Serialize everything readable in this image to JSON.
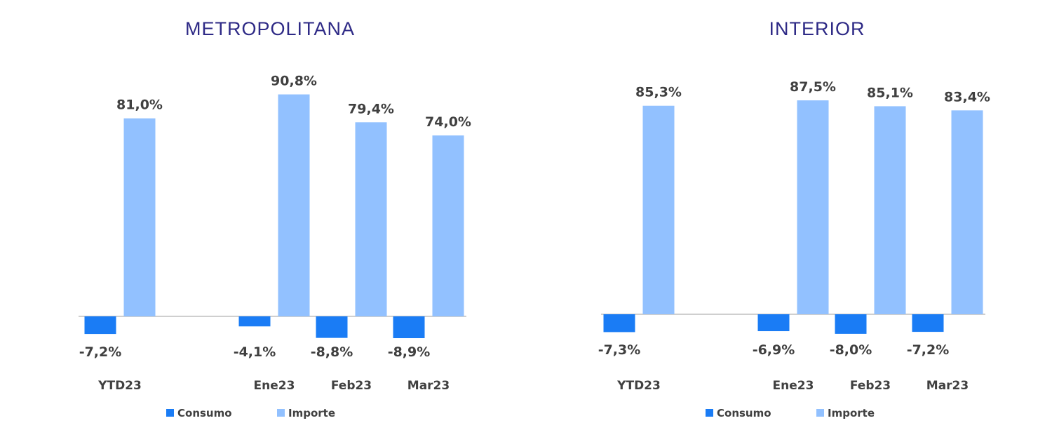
{
  "colors": {
    "title": "#2e2a86",
    "consumo": "#1a7cf5",
    "importe": "#92c1ff",
    "axis": "#bfbfbf",
    "text": "#404040"
  },
  "chart_data": [
    {
      "type": "bar",
      "title": "METROPOLITANA",
      "categories": [
        "YTD23",
        "",
        "Ene23",
        "Feb23",
        "Mar23"
      ],
      "series": [
        {
          "name": "Consumo",
          "values": [
            -7.2,
            null,
            -4.1,
            -8.8,
            -8.9
          ],
          "labels": [
            "-7,2%",
            null,
            "-4,1%",
            "-8,8%",
            "-8,9%"
          ]
        },
        {
          "name": "Importe",
          "values": [
            81.0,
            null,
            90.8,
            79.4,
            74.0
          ],
          "labels": [
            "81,0%",
            null,
            "90,8%",
            "79,4%",
            "74,0%"
          ]
        }
      ],
      "legend": "bottom",
      "grid": false
    },
    {
      "type": "bar",
      "title": "INTERIOR",
      "categories": [
        "YTD23",
        "",
        "Ene23",
        "Feb23",
        "Mar23"
      ],
      "series": [
        {
          "name": "Consumo",
          "values": [
            -7.3,
            null,
            -6.9,
            -8.0,
            -7.2
          ],
          "labels": [
            "-7,3%",
            null,
            "-6,9%",
            "-8,0%",
            "-7,2%"
          ]
        },
        {
          "name": "Importe",
          "values": [
            85.3,
            null,
            87.5,
            85.1,
            83.4
          ],
          "labels": [
            "85,3%",
            null,
            "87,5%",
            "85,1%",
            "83,4%"
          ]
        }
      ],
      "legend": "bottom",
      "grid": false
    }
  ]
}
